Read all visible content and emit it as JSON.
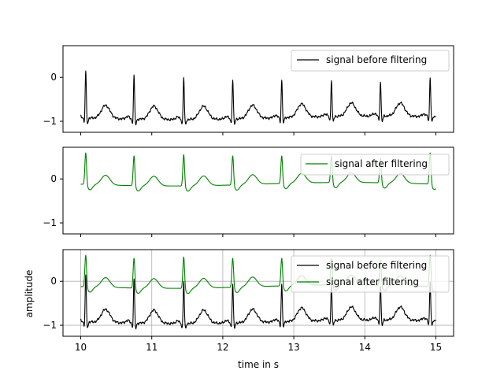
{
  "chart_data": [
    {
      "type": "line",
      "xlim": [
        9.75,
        15.25
      ],
      "ylim": [
        -1.25,
        0.72
      ],
      "yticks": [
        0,
        -1
      ],
      "ytick_labels": [
        "0",
        "−1"
      ],
      "grid": false,
      "legend_placement": "top-right",
      "series": [
        {
          "name": "signal before filtering",
          "color": "#000000",
          "baseline": -0.95
        }
      ]
    },
    {
      "type": "line",
      "xlim": [
        9.75,
        15.25
      ],
      "ylim": [
        -1.25,
        0.72
      ],
      "yticks": [
        0,
        -1
      ],
      "ytick_labels": [
        "0",
        "−1"
      ],
      "grid": false,
      "legend_placement": "top-right",
      "series": [
        {
          "name": "signal after filtering",
          "color": "#008000",
          "baseline": -0.18
        }
      ]
    },
    {
      "type": "line",
      "xlim": [
        9.75,
        15.25
      ],
      "ylim": [
        -1.25,
        0.72
      ],
      "xticks": [
        10,
        11,
        12,
        13,
        14,
        15
      ],
      "xtick_labels": [
        "10",
        "11",
        "12",
        "13",
        "14",
        "15"
      ],
      "yticks": [
        0,
        -1
      ],
      "ytick_labels": [
        "0",
        "−1"
      ],
      "xlabel": "time in s",
      "ylabel": "amplitude",
      "grid": true,
      "legend_placement": "top-right",
      "series": [
        {
          "name": "signal before filtering",
          "color": "#000000",
          "baseline": -0.95
        },
        {
          "name": "signal after filtering",
          "color": "#008000",
          "baseline": -0.18
        }
      ]
    }
  ],
  "signal": {
    "x_start": 10.0,
    "x_end": 15.0,
    "beat_times": [
      10.07,
      10.75,
      11.45,
      12.14,
      12.83,
      13.53,
      14.22,
      14.92
    ],
    "r_peak_before": [
      0.15,
      0.05,
      0.0,
      -0.05,
      -0.05,
      -0.05,
      -0.08,
      0.0
    ],
    "r_peak_after": [
      0.62,
      0.55,
      0.58,
      0.55,
      0.55,
      0.55,
      0.5,
      0.62
    ]
  }
}
